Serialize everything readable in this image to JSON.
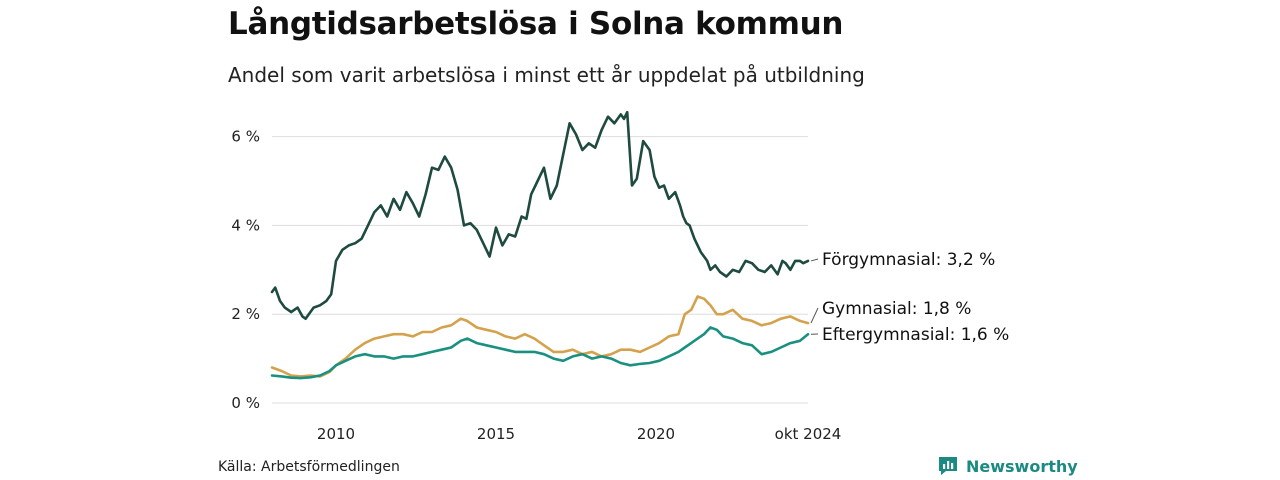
{
  "header": {
    "title": "Långtidsarbetslösa i Solna kommun",
    "subtitle": "Andel som varit arbetslösa i minst ett år uppdelat på utbildning"
  },
  "footer": {
    "source": "Källa: Arbetsförmedlingen",
    "brand": "Newsworthy"
  },
  "colors": {
    "forgymnasial": "#1e4a3f",
    "gymnasial": "#d4a24c",
    "eftergymnasial": "#1a9080",
    "grid": "#dddddd"
  },
  "chart_data": {
    "type": "line",
    "title": "Långtidsarbetslösa i Solna kommun",
    "xlabel": "",
    "ylabel": "",
    "xlim": [
      2008.0,
      2024.75
    ],
    "ylim": [
      0,
      6.6
    ],
    "y_ticks": [
      {
        "value": 0,
        "label": "0 %"
      },
      {
        "value": 2,
        "label": "2 %"
      },
      {
        "value": 4,
        "label": "4 %"
      },
      {
        "value": 6,
        "label": "6 %"
      }
    ],
    "x_ticks": [
      {
        "value": 2010,
        "label": "2010"
      },
      {
        "value": 2015,
        "label": "2015"
      },
      {
        "value": 2020,
        "label": "2020"
      },
      {
        "value": 2024.75,
        "label": "okt 2024"
      }
    ],
    "series": [
      {
        "name": "Förgymnasial",
        "label": "Förgymnasial: 3,2 %",
        "x": [
          2008.0,
          2008.1,
          2008.25,
          2008.4,
          2008.6,
          2008.8,
          2008.95,
          2009.05,
          2009.15,
          2009.3,
          2009.5,
          2009.7,
          2009.85,
          2010.0,
          2010.2,
          2010.4,
          2010.6,
          2010.8,
          2011.0,
          2011.2,
          2011.4,
          2011.6,
          2011.8,
          2012.0,
          2012.2,
          2012.4,
          2012.6,
          2012.8,
          2013.0,
          2013.2,
          2013.4,
          2013.6,
          2013.8,
          2014.0,
          2014.2,
          2014.4,
          2014.6,
          2014.8,
          2015.0,
          2015.2,
          2015.4,
          2015.6,
          2015.8,
          2015.95,
          2016.1,
          2016.3,
          2016.5,
          2016.7,
          2016.9,
          2017.1,
          2017.3,
          2017.5,
          2017.7,
          2017.9,
          2018.1,
          2018.3,
          2018.5,
          2018.7,
          2018.9,
          2019.0,
          2019.1,
          2019.25,
          2019.4,
          2019.6,
          2019.8,
          2019.95,
          2020.1,
          2020.25,
          2020.4,
          2020.6,
          2020.75,
          2020.85,
          2020.95,
          2021.05,
          2021.2,
          2021.4,
          2021.6,
          2021.7,
          2021.85,
          2022.0,
          2022.2,
          2022.4,
          2022.6,
          2022.8,
          2023.0,
          2023.2,
          2023.4,
          2023.6,
          2023.8,
          2023.95,
          2024.05,
          2024.2,
          2024.35,
          2024.5,
          2024.6,
          2024.75
        ],
        "values": [
          2.5,
          2.6,
          2.3,
          2.15,
          2.05,
          2.15,
          1.95,
          1.9,
          2.0,
          2.15,
          2.2,
          2.3,
          2.45,
          3.2,
          3.45,
          3.55,
          3.6,
          3.7,
          4.0,
          4.3,
          4.45,
          4.2,
          4.6,
          4.35,
          4.75,
          4.5,
          4.2,
          4.7,
          5.3,
          5.25,
          5.55,
          5.3,
          4.8,
          4.0,
          4.05,
          3.9,
          3.6,
          3.3,
          3.95,
          3.55,
          3.8,
          3.75,
          4.2,
          4.15,
          4.7,
          5.0,
          5.3,
          4.6,
          4.9,
          5.6,
          6.3,
          6.05,
          5.7,
          5.85,
          5.75,
          6.15,
          6.45,
          6.3,
          6.5,
          6.4,
          6.55,
          4.9,
          5.05,
          5.9,
          5.7,
          5.1,
          4.85,
          4.9,
          4.6,
          4.75,
          4.45,
          4.2,
          4.05,
          4.0,
          3.7,
          3.4,
          3.2,
          3.0,
          3.1,
          2.95,
          2.85,
          3.0,
          2.95,
          3.2,
          3.15,
          3.0,
          2.95,
          3.1,
          2.9,
          3.2,
          3.15,
          3.0,
          3.2,
          3.2,
          3.15,
          3.2
        ]
      },
      {
        "name": "Gymnasial",
        "label": "Gymnasial: 1,8 %",
        "x": [
          2008.0,
          2008.3,
          2008.6,
          2008.9,
          2009.2,
          2009.5,
          2009.8,
          2010.0,
          2010.3,
          2010.6,
          2010.9,
          2011.2,
          2011.5,
          2011.8,
          2012.1,
          2012.4,
          2012.7,
          2013.0,
          2013.3,
          2013.6,
          2013.9,
          2014.1,
          2014.4,
          2014.7,
          2015.0,
          2015.3,
          2015.6,
          2015.9,
          2016.2,
          2016.5,
          2016.8,
          2017.1,
          2017.4,
          2017.7,
          2018.0,
          2018.3,
          2018.6,
          2018.9,
          2019.2,
          2019.5,
          2019.8,
          2020.1,
          2020.4,
          2020.7,
          2020.9,
          2021.1,
          2021.3,
          2021.5,
          2021.7,
          2021.9,
          2022.1,
          2022.4,
          2022.7,
          2023.0,
          2023.3,
          2023.6,
          2023.9,
          2024.2,
          2024.5,
          2024.75
        ],
        "values": [
          0.8,
          0.72,
          0.62,
          0.6,
          0.62,
          0.6,
          0.7,
          0.85,
          1.0,
          1.2,
          1.35,
          1.45,
          1.5,
          1.55,
          1.55,
          1.5,
          1.6,
          1.6,
          1.7,
          1.75,
          1.9,
          1.85,
          1.7,
          1.65,
          1.6,
          1.5,
          1.45,
          1.55,
          1.45,
          1.3,
          1.15,
          1.15,
          1.2,
          1.1,
          1.15,
          1.05,
          1.1,
          1.2,
          1.2,
          1.15,
          1.25,
          1.35,
          1.5,
          1.55,
          2.0,
          2.1,
          2.4,
          2.35,
          2.2,
          2.0,
          2.0,
          2.1,
          1.9,
          1.85,
          1.75,
          1.8,
          1.9,
          1.95,
          1.85,
          1.8
        ]
      },
      {
        "name": "Eftergymnasial",
        "label": "Eftergymnasial: 1,6 %",
        "x": [
          2008.0,
          2008.3,
          2008.6,
          2008.9,
          2009.2,
          2009.5,
          2009.8,
          2010.0,
          2010.3,
          2010.6,
          2010.9,
          2011.2,
          2011.5,
          2011.8,
          2012.1,
          2012.4,
          2012.7,
          2013.0,
          2013.3,
          2013.6,
          2013.9,
          2014.1,
          2014.4,
          2014.7,
          2015.0,
          2015.3,
          2015.6,
          2015.9,
          2016.2,
          2016.5,
          2016.8,
          2017.1,
          2017.4,
          2017.7,
          2018.0,
          2018.3,
          2018.6,
          2018.9,
          2019.2,
          2019.5,
          2019.8,
          2020.1,
          2020.4,
          2020.7,
          2020.9,
          2021.1,
          2021.3,
          2021.5,
          2021.7,
          2021.9,
          2022.1,
          2022.4,
          2022.7,
          2023.0,
          2023.3,
          2023.6,
          2023.9,
          2024.2,
          2024.5,
          2024.75
        ],
        "values": [
          0.62,
          0.6,
          0.57,
          0.56,
          0.58,
          0.62,
          0.72,
          0.85,
          0.95,
          1.05,
          1.1,
          1.05,
          1.05,
          1.0,
          1.05,
          1.05,
          1.1,
          1.15,
          1.2,
          1.25,
          1.4,
          1.45,
          1.35,
          1.3,
          1.25,
          1.2,
          1.15,
          1.15,
          1.15,
          1.1,
          1.0,
          0.95,
          1.05,
          1.1,
          1.0,
          1.05,
          1.0,
          0.9,
          0.85,
          0.88,
          0.9,
          0.95,
          1.05,
          1.15,
          1.25,
          1.35,
          1.45,
          1.55,
          1.7,
          1.65,
          1.5,
          1.45,
          1.35,
          1.3,
          1.1,
          1.15,
          1.25,
          1.35,
          1.4,
          1.55
        ]
      }
    ]
  }
}
